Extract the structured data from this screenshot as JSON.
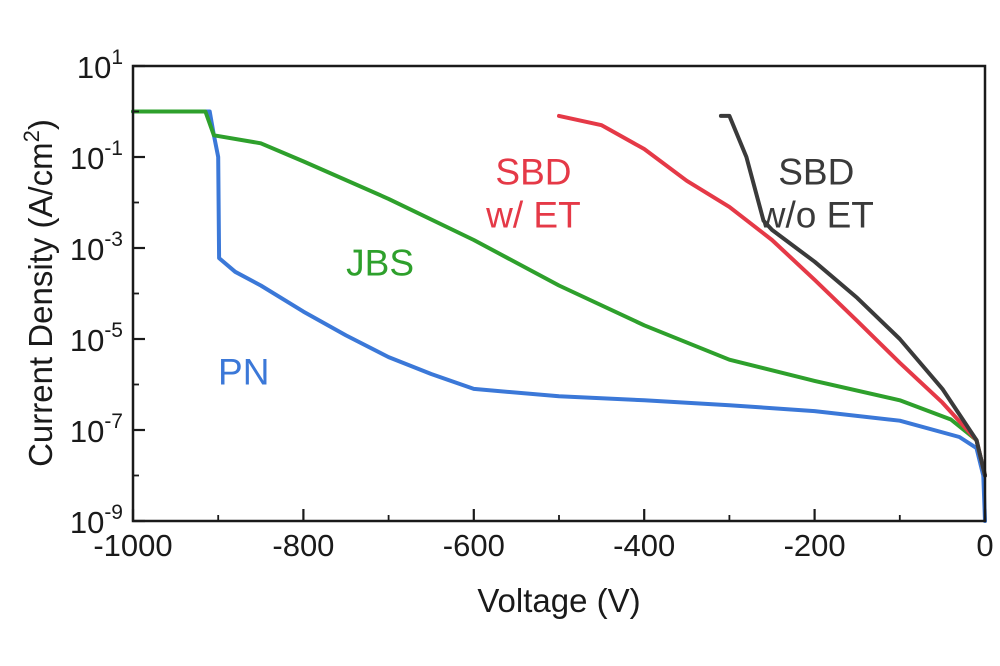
{
  "chart_data": {
    "type": "line",
    "title": "",
    "xlabel": "Voltage (V)",
    "ylabel_parts": [
      "Current Density (A/cm",
      "2",
      ")"
    ],
    "xlim": [
      -1000,
      0
    ],
    "ylim_log10": [
      -9,
      1
    ],
    "yscale": "log",
    "grid": false,
    "legend": "none",
    "x_ticks": [
      {
        "value": -1000,
        "label": "-1000"
      },
      {
        "value": -800,
        "label": "-800"
      },
      {
        "value": -600,
        "label": "-600"
      },
      {
        "value": -400,
        "label": "-400"
      },
      {
        "value": -200,
        "label": "-200"
      },
      {
        "value": 0,
        "label": "0"
      }
    ],
    "y_ticks": [
      {
        "exp": 1,
        "base": "10",
        "sup": "1"
      },
      {
        "exp": -1,
        "base": "10",
        "sup": "-1"
      },
      {
        "exp": -3,
        "base": "10",
        "sup": "-3"
      },
      {
        "exp": -5,
        "base": "10",
        "sup": "-5"
      },
      {
        "exp": -7,
        "base": "10",
        "sup": "-7"
      },
      {
        "exp": -9,
        "base": "10",
        "sup": "-9"
      }
    ],
    "series": [
      {
        "id": "pn",
        "label_lines": [
          "PN"
        ],
        "label_at": {
          "x": -870,
          "y_exp": -6.0
        },
        "color": "#3b78d8",
        "points": [
          [
            -1000,
            1.0
          ],
          [
            -910,
            1.0
          ],
          [
            -905,
            0.3
          ],
          [
            -900,
            0.1
          ],
          [
            -899,
            0.0006
          ],
          [
            -880,
            0.0003
          ],
          [
            -850,
            0.00015
          ],
          [
            -800,
            4e-05
          ],
          [
            -750,
            1.2e-05
          ],
          [
            -700,
            4e-06
          ],
          [
            -650,
            1.7e-06
          ],
          [
            -600,
            8e-07
          ],
          [
            -500,
            5.5e-07
          ],
          [
            -400,
            4.5e-07
          ],
          [
            -300,
            3.5e-07
          ],
          [
            -200,
            2.6e-07
          ],
          [
            -100,
            1.6e-07
          ],
          [
            -30,
            7e-08
          ],
          [
            -10,
            4e-08
          ],
          [
            -2,
            1e-08
          ],
          [
            0,
            1e-09
          ]
        ]
      },
      {
        "id": "jbs",
        "label_lines": [
          "JBS"
        ],
        "label_at": {
          "x": -710,
          "y_exp": -3.6
        },
        "color": "#2ea02c",
        "points": [
          [
            -1000,
            1.0
          ],
          [
            -915,
            1.0
          ],
          [
            -905,
            0.3
          ],
          [
            -850,
            0.2
          ],
          [
            -800,
            0.08
          ],
          [
            -700,
            0.012
          ],
          [
            -600,
            0.0015
          ],
          [
            -500,
            0.00015
          ],
          [
            -400,
            2e-05
          ],
          [
            -300,
            3.5e-06
          ],
          [
            -200,
            1.2e-06
          ],
          [
            -100,
            4.5e-07
          ],
          [
            -40,
            1.7e-07
          ],
          [
            -10,
            6e-08
          ],
          [
            0,
            1e-08
          ]
        ]
      },
      {
        "id": "sbd-et",
        "label_lines": [
          "SBD",
          "w/ ET"
        ],
        "label_at": {
          "x": -530,
          "y_exp": -1.6
        },
        "color": "#e53947",
        "points": [
          [
            -500,
            0.8
          ],
          [
            -450,
            0.5
          ],
          [
            -400,
            0.15
          ],
          [
            -350,
            0.03
          ],
          [
            -300,
            0.008
          ],
          [
            -250,
            0.0015
          ],
          [
            -200,
            0.0002
          ],
          [
            -150,
            2.5e-05
          ],
          [
            -100,
            3e-06
          ],
          [
            -50,
            4e-07
          ],
          [
            -10,
            6e-08
          ],
          [
            0,
            1e-08
          ]
        ]
      },
      {
        "id": "sbd-wo-et",
        "label_lines": [
          "SBD",
          "w/o ET"
        ],
        "label_at": {
          "x": -198,
          "y_exp": -1.6
        },
        "color": "#3a3a3a",
        "points": [
          [
            -310,
            0.8
          ],
          [
            -300,
            0.8
          ],
          [
            -280,
            0.1
          ],
          [
            -260,
            0.004
          ],
          [
            -250,
            0.0025
          ],
          [
            -200,
            0.0005
          ],
          [
            -150,
            8e-05
          ],
          [
            -100,
            1e-05
          ],
          [
            -50,
            8e-07
          ],
          [
            -10,
            6e-08
          ],
          [
            0,
            1e-08
          ]
        ]
      }
    ]
  }
}
